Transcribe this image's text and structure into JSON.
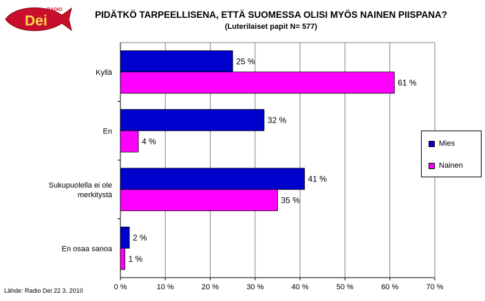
{
  "logo": {
    "small_text": "RADIO",
    "big_text": "Dei"
  },
  "source": "Lähde: Radio Dei 22 3. 2010",
  "colors": {
    "mies": "#0000CC",
    "nainen": "#FF00FF",
    "plot_bg": "#FFFFFF",
    "grid": "#808080"
  },
  "chart_data": {
    "type": "bar",
    "orientation": "horizontal",
    "title": "PIDÄTKÖ TARPEELLISENA, ETTÄ SUOMESSA OLISI MYÖS NAINEN PIISPANA?",
    "subtitle": "(Luterilaiset papit N= 577)",
    "categories": [
      [
        "Kyllä"
      ],
      [
        "En"
      ],
      [
        "Sukupuolella ei ole",
        "merkitystä"
      ],
      [
        "En osaa sanoa"
      ]
    ],
    "series": [
      {
        "name": "Mies",
        "values": [
          25,
          32,
          41,
          2
        ],
        "labels": [
          "25 %",
          "32 %",
          "41 %",
          "2 %"
        ]
      },
      {
        "name": "Nainen",
        "values": [
          61,
          4,
          35,
          1
        ],
        "labels": [
          "61 %",
          "4 %",
          "35 %",
          "1 %"
        ]
      }
    ],
    "xlim": [
      0,
      70
    ],
    "xticks": [
      0,
      10,
      20,
      30,
      40,
      50,
      60,
      70
    ],
    "xtick_labels": [
      "0 %",
      "10 %",
      "20 %",
      "30 %",
      "40 %",
      "50 %",
      "60 %",
      "70 %"
    ],
    "grid": true,
    "legend": "right"
  }
}
